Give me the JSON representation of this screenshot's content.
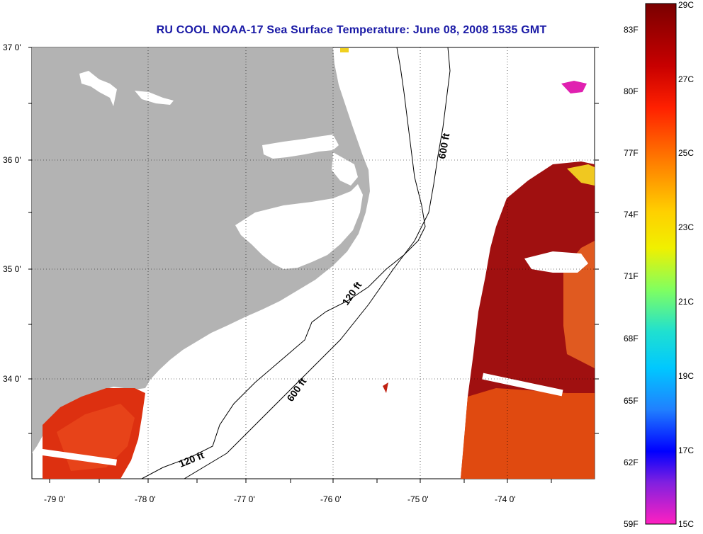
{
  "title": "RU COOL  NOAA-17  Sea Surface Temperature:  June 08, 2008 1535 GMT",
  "lat_labels": [
    "37 0'",
    "36 0'",
    "35 0'",
    "34 0'"
  ],
  "lon_labels": [
    "-79 0'",
    "-78 0'",
    "-77 0'",
    "-76 0'",
    "-75 0'",
    "-74 0'"
  ],
  "colorbar": {
    "fahrenheit_labels": [
      "83F",
      "80F",
      "77F",
      "74F",
      "71F",
      "68F",
      "65F",
      "62F",
      "59F"
    ],
    "celsius_labels": [
      "29C",
      "27C",
      "25C",
      "23C",
      "21C",
      "19C",
      "17C",
      "15C"
    ],
    "range_c": [
      15,
      29
    ]
  },
  "depth_labels": {
    "d600_north": "600 ft",
    "d600_south": "600 ft",
    "d120_north": "120 ft",
    "d120_south": "120 ft"
  },
  "colors": {
    "title": "#1a1aa6",
    "land": "#b3b3b3",
    "warm_sst": "#a01010",
    "mid_sst": "#dd3010"
  }
}
